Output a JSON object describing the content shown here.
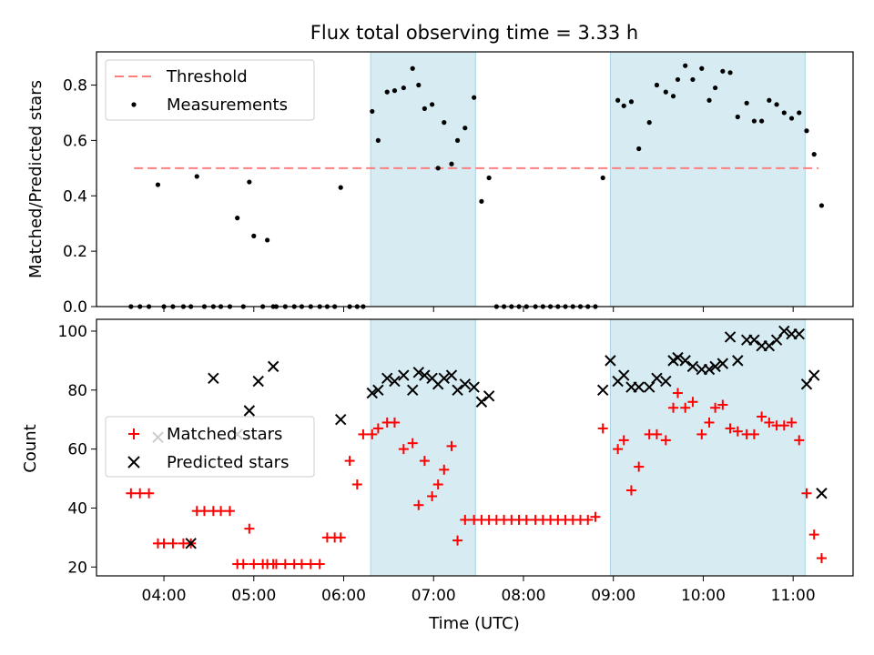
{
  "title": "Flux total observing time = 3.33 h",
  "chart_data": [
    {
      "type": "scatter",
      "title": "Flux total observing time = 3.33 h",
      "xlabel": "",
      "ylabel": "Matched/Predicted stars",
      "x_range": [
        "03:15",
        "11:40"
      ],
      "ylim": [
        0,
        0.92
      ],
      "yticks": [
        "0.0",
        "0.2",
        "0.4",
        "0.6",
        "0.8"
      ],
      "x_tick_labels_visible": false,
      "legend": {
        "location": "upper-left",
        "entries": [
          "Threshold",
          "Measurements"
        ]
      },
      "shaded_intervals": [
        [
          "06:18",
          "07:28"
        ],
        [
          "08:58",
          "11:08"
        ]
      ],
      "threshold": {
        "name": "Threshold",
        "value": 0.5,
        "x_start": "03:40",
        "x_end": "11:17",
        "color": "#ff7f7f",
        "style": "dashed"
      },
      "series": [
        {
          "name": "Measurements",
          "color": "#000000",
          "marker": "dot",
          "x": [
            "03:38",
            "03:44",
            "03:50",
            "03:56",
            "04:00",
            "04:06",
            "04:13",
            "04:18",
            "04:22",
            "04:27",
            "04:33",
            "04:38",
            "04:44",
            "04:49",
            "04:53",
            "04:57",
            "05:00",
            "05:06",
            "05:09",
            "05:13",
            "05:15",
            "05:21",
            "05:27",
            "05:32",
            "05:38",
            "05:44",
            "05:49",
            "05:54",
            "05:58",
            "06:04",
            "06:09",
            "06:13",
            "06:19",
            "06:23",
            "06:29",
            "06:34",
            "06:40",
            "06:46",
            "06:50",
            "06:54",
            "06:59",
            "07:03",
            "07:07",
            "07:12",
            "07:16",
            "07:21",
            "07:27",
            "07:32",
            "07:37",
            "07:42",
            "07:47",
            "07:52",
            "07:57",
            "08:02",
            "08:08",
            "08:13",
            "08:18",
            "08:23",
            "08:28",
            "08:33",
            "08:38",
            "08:43",
            "08:48",
            "08:53",
            "09:03",
            "09:07",
            "09:12",
            "09:17",
            "09:24",
            "09:29",
            "09:35",
            "09:40",
            "09:43",
            "09:48",
            "09:53",
            "09:59",
            "10:04",
            "10:08",
            "10:13",
            "10:18",
            "10:23",
            "10:29",
            "10:34",
            "10:39",
            "10:44",
            "10:49",
            "10:54",
            "10:59",
            "11:04",
            "11:09",
            "11:14",
            "11:19"
          ],
          "y": [
            0,
            0,
            0,
            0.44,
            0,
            0,
            0,
            0,
            0.47,
            0,
            0,
            0,
            0,
            0.32,
            0,
            0.45,
            0.255,
            0,
            0.24,
            0,
            0,
            0,
            0,
            0,
            0,
            0,
            0,
            0,
            0.43,
            0,
            0,
            0,
            0.705,
            0.6,
            0.775,
            0.78,
            0.79,
            0.86,
            0.8,
            0.715,
            0.73,
            0.5,
            0.665,
            0.515,
            0.6,
            0.645,
            0.755,
            0.38,
            0.465,
            0,
            0,
            0,
            0,
            0,
            0,
            0,
            0,
            0,
            0,
            0,
            0,
            0,
            0,
            0.465,
            0.745,
            0.725,
            0.74,
            0.57,
            0.665,
            0.8,
            0.775,
            0.76,
            0.82,
            0.87,
            0.82,
            0.86,
            0.745,
            0.79,
            0.85,
            0.845,
            0.685,
            0.735,
            0.67,
            0.67,
            0.745,
            0.73,
            0.7,
            0.68,
            0.7,
            0.635,
            0.55,
            0.365
          ]
        }
      ]
    },
    {
      "type": "scatter",
      "title": "",
      "xlabel": "Time (UTC)",
      "ylabel": "Count",
      "x_range": [
        "03:15",
        "11:40"
      ],
      "ylim": [
        17,
        104
      ],
      "yticks": [
        "20",
        "40",
        "60",
        "80",
        "100"
      ],
      "xticks": [
        "04:00",
        "05:00",
        "06:00",
        "07:00",
        "08:00",
        "09:00",
        "10:00",
        "11:00"
      ],
      "legend": {
        "location": "center-left",
        "entries": [
          "Matched stars",
          "Predicted stars"
        ]
      },
      "shaded_intervals": [
        [
          "06:18",
          "07:28"
        ],
        [
          "08:58",
          "11:08"
        ]
      ],
      "series": [
        {
          "name": "Matched stars",
          "color": "#ff0000",
          "marker": "plus",
          "x": [
            "03:38",
            "03:44",
            "03:50",
            "03:56",
            "04:00",
            "04:06",
            "04:13",
            "04:18",
            "04:22",
            "04:27",
            "04:33",
            "04:38",
            "04:44",
            "04:49",
            "04:53",
            "04:57",
            "05:00",
            "05:06",
            "05:09",
            "05:13",
            "05:15",
            "05:21",
            "05:27",
            "05:32",
            "05:38",
            "05:44",
            "05:49",
            "05:54",
            "05:58",
            "06:04",
            "06:09",
            "06:13",
            "06:19",
            "06:23",
            "06:29",
            "06:34",
            "06:40",
            "06:46",
            "06:50",
            "06:54",
            "06:59",
            "07:03",
            "07:07",
            "07:12",
            "07:16",
            "07:21",
            "07:27",
            "07:32",
            "07:37",
            "07:42",
            "07:47",
            "07:52",
            "07:57",
            "08:02",
            "08:08",
            "08:13",
            "08:18",
            "08:23",
            "08:28",
            "08:33",
            "08:38",
            "08:43",
            "08:48",
            "08:53",
            "09:03",
            "09:07",
            "09:12",
            "09:17",
            "09:24",
            "09:29",
            "09:35",
            "09:40",
            "09:43",
            "09:48",
            "09:53",
            "09:59",
            "10:04",
            "10:08",
            "10:13",
            "10:18",
            "10:23",
            "10:29",
            "10:34",
            "10:39",
            "10:44",
            "10:49",
            "10:54",
            "10:59",
            "11:04",
            "11:09",
            "11:14",
            "11:19"
          ],
          "y": [
            45,
            45,
            45,
            28,
            28,
            28,
            28,
            28,
            39,
            39,
            39,
            39,
            39,
            21,
            21,
            33,
            21,
            21,
            21,
            21,
            21,
            21,
            21,
            21,
            21,
            21,
            30,
            30,
            30,
            56,
            48,
            65,
            65,
            67,
            69,
            69,
            60,
            62,
            41,
            56,
            44,
            48,
            53,
            61,
            29,
            36,
            36,
            36,
            36,
            36,
            36,
            36,
            36,
            36,
            36,
            36,
            36,
            36,
            36,
            36,
            36,
            36,
            37,
            67,
            60,
            63,
            46,
            54,
            65,
            65,
            63,
            74,
            79,
            74,
            76,
            65,
            69,
            74,
            75,
            67,
            66,
            65,
            65,
            71,
            69,
            68,
            68,
            69,
            63,
            45,
            31,
            23
          ]
        },
        {
          "name": "Predicted stars",
          "color": "#000000",
          "marker": "x",
          "x": [
            "03:56",
            "04:18",
            "04:33",
            "04:49",
            "04:57",
            "05:03",
            "05:13",
            "05:58",
            "06:19",
            "06:23",
            "06:29",
            "06:34",
            "06:40",
            "06:46",
            "06:50",
            "06:54",
            "06:59",
            "07:03",
            "07:07",
            "07:12",
            "07:16",
            "07:21",
            "07:27",
            "07:32",
            "07:37",
            "08:53",
            "08:58",
            "09:03",
            "09:07",
            "09:12",
            "09:17",
            "09:24",
            "09:29",
            "09:35",
            "09:40",
            "09:43",
            "09:48",
            "09:53",
            "09:59",
            "10:04",
            "10:08",
            "10:13",
            "10:18",
            "10:23",
            "10:29",
            "10:34",
            "10:39",
            "10:44",
            "10:49",
            "10:54",
            "10:59",
            "11:04",
            "11:09",
            "11:14",
            "11:19"
          ],
          "y": [
            64,
            28,
            84,
            65,
            73,
            83,
            88,
            70,
            79,
            80,
            84,
            83,
            85,
            80,
            86,
            85,
            84,
            82,
            84,
            85,
            80,
            82,
            81,
            76,
            78,
            80,
            90,
            83,
            85,
            81,
            81,
            81,
            84,
            83,
            90,
            91,
            90,
            88,
            87,
            87,
            88,
            89,
            98,
            90,
            97,
            97,
            95,
            95,
            97,
            100,
            99,
            99,
            82,
            85,
            45
          ]
        }
      ]
    }
  ]
}
